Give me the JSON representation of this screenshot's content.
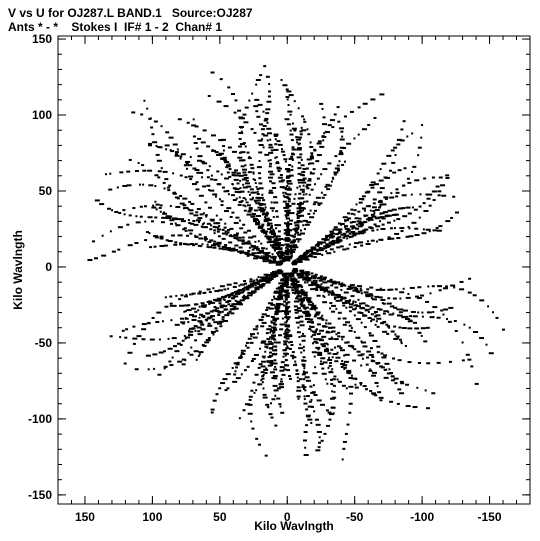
{
  "chart_data": {
    "type": "scatter",
    "title": "V vs U for OJ287.L BAND.1   Source:OJ287",
    "subtitle": "Ants * - *    Stokes I  IF# 1 - 2  Chan# 1",
    "xlabel": "Kilo Wavlngth",
    "ylabel": "Kilo Wavlngth",
    "x_reversed": true,
    "xlim": [
      170,
      -180
    ],
    "ylim": [
      -156,
      152
    ],
    "x_ticks": [
      150,
      100,
      50,
      0,
      -50,
      -100,
      -150
    ],
    "y_ticks": [
      150,
      100,
      50,
      0,
      -50,
      -100,
      -150
    ],
    "x_tick_labels": [
      "150",
      "100",
      "50",
      "0",
      "-50",
      "-100",
      "-150"
    ],
    "y_tick_labels": [
      "150",
      "100",
      "50",
      "0",
      "-50",
      "-100",
      "-150"
    ],
    "grid": false,
    "marker_color": "#000000",
    "point_pattern": {
      "description": "uv-coverage tracks",
      "tracks": [
        {
          "angle_deg": 28,
          "radius_min": 5,
          "radius_max": 175,
          "spread": 14
        },
        {
          "angle_deg": 100,
          "radius_min": 5,
          "radius_max": 150,
          "spread": 14
        },
        {
          "angle_deg": 65,
          "radius_min": 5,
          "radius_max": 160,
          "spread": 12
        },
        {
          "angle_deg": 150,
          "radius_min": 5,
          "radius_max": 150,
          "spread": 10
        },
        {
          "angle_deg": 208,
          "radius_min": 5,
          "radius_max": 175,
          "spread": 14
        },
        {
          "angle_deg": 280,
          "radius_min": 5,
          "radius_max": 150,
          "spread": 14
        },
        {
          "angle_deg": 245,
          "radius_min": 5,
          "radius_max": 160,
          "spread": 12
        },
        {
          "angle_deg": 330,
          "radius_min": 5,
          "radius_max": 150,
          "spread": 10
        }
      ]
    }
  }
}
